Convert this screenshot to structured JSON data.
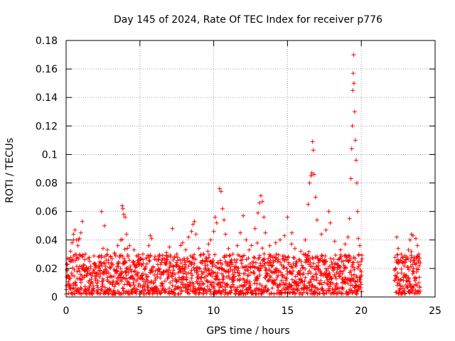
{
  "chart_data": {
    "type": "scatter",
    "title": "Day 145 of 2024, Rate Of TEC Index for receiver p776",
    "xlabel": "GPS time / hours",
    "ylabel": "ROTI / TECUs",
    "xlim": [
      0,
      25
    ],
    "ylim": [
      0,
      0.18
    ],
    "x_ticks": [
      0,
      5,
      10,
      15,
      20,
      25
    ],
    "x_tick_labels": [
      "0",
      "5",
      "10",
      "15",
      "20",
      "25"
    ],
    "y_ticks": [
      0,
      0.02,
      0.04,
      0.06,
      0.08,
      0.1,
      0.12,
      0.14,
      0.16,
      0.18
    ],
    "y_tick_labels": [
      "0",
      "0.02",
      "0.04",
      "0.06",
      "0.08",
      "0.1",
      "0.12",
      "0.14",
      "0.16",
      "0.18"
    ],
    "grid": true,
    "marker": "+",
    "color": "#ff0000",
    "data_gap_hours": [
      20.0,
      22.2
    ],
    "series": [
      {
        "name": "ROTI",
        "points": [
          [
            0.1,
            0.015
          ],
          [
            0.3,
            0.032
          ],
          [
            0.4,
            0.038
          ],
          [
            0.5,
            0.044
          ],
          [
            0.6,
            0.047
          ],
          [
            0.7,
            0.04
          ],
          [
            0.8,
            0.036
          ],
          [
            0.9,
            0.041
          ],
          [
            1.0,
            0.045
          ],
          [
            1.1,
            0.053
          ],
          [
            1.3,
            0.03
          ],
          [
            1.6,
            0.025
          ],
          [
            2.0,
            0.022
          ],
          [
            2.2,
            0.028
          ],
          [
            2.4,
            0.06
          ],
          [
            2.5,
            0.034
          ],
          [
            2.6,
            0.05
          ],
          [
            2.8,
            0.033
          ],
          [
            3.0,
            0.028
          ],
          [
            3.3,
            0.03
          ],
          [
            3.5,
            0.036
          ],
          [
            3.7,
            0.04
          ],
          [
            3.8,
            0.064
          ],
          [
            3.85,
            0.062
          ],
          [
            3.9,
            0.058
          ],
          [
            4.0,
            0.056
          ],
          [
            4.1,
            0.044
          ],
          [
            4.3,
            0.036
          ],
          [
            4.6,
            0.033
          ],
          [
            4.9,
            0.028
          ],
          [
            5.2,
            0.03
          ],
          [
            5.6,
            0.036
          ],
          [
            5.7,
            0.043
          ],
          [
            5.8,
            0.041
          ],
          [
            6.3,
            0.028
          ],
          [
            6.8,
            0.031
          ],
          [
            7.0,
            0.035
          ],
          [
            7.2,
            0.048
          ],
          [
            7.5,
            0.03
          ],
          [
            7.9,
            0.038
          ],
          [
            8.1,
            0.033
          ],
          [
            8.5,
            0.046
          ],
          [
            8.6,
            0.051
          ],
          [
            8.7,
            0.053
          ],
          [
            8.8,
            0.044
          ],
          [
            9.0,
            0.034
          ],
          [
            9.3,
            0.03
          ],
          [
            9.6,
            0.032
          ],
          [
            9.8,
            0.04
          ],
          [
            10.0,
            0.046
          ],
          [
            10.1,
            0.056
          ],
          [
            10.2,
            0.052
          ],
          [
            10.4,
            0.076
          ],
          [
            10.5,
            0.074
          ],
          [
            10.6,
            0.062
          ],
          [
            10.7,
            0.054
          ],
          [
            10.8,
            0.044
          ],
          [
            11.0,
            0.034
          ],
          [
            11.3,
            0.03
          ],
          [
            11.6,
            0.036
          ],
          [
            11.8,
            0.045
          ],
          [
            12.0,
            0.057
          ],
          [
            12.2,
            0.04
          ],
          [
            12.4,
            0.033
          ],
          [
            12.8,
            0.048
          ],
          [
            13.0,
            0.059
          ],
          [
            13.1,
            0.066
          ],
          [
            13.2,
            0.071
          ],
          [
            13.3,
            0.067
          ],
          [
            13.4,
            0.056
          ],
          [
            13.5,
            0.045
          ],
          [
            13.8,
            0.036
          ],
          [
            14.2,
            0.038
          ],
          [
            14.5,
            0.04
          ],
          [
            14.8,
            0.043
          ],
          [
            15.0,
            0.056
          ],
          [
            15.3,
            0.045
          ],
          [
            15.5,
            0.034
          ],
          [
            15.9,
            0.032
          ],
          [
            16.2,
            0.04
          ],
          [
            16.4,
            0.065
          ],
          [
            16.5,
            0.08
          ],
          [
            16.6,
            0.085
          ],
          [
            16.65,
            0.087
          ],
          [
            16.7,
            0.109
          ],
          [
            16.75,
            0.103
          ],
          [
            16.8,
            0.086
          ],
          [
            16.9,
            0.07
          ],
          [
            17.0,
            0.054
          ],
          [
            17.3,
            0.044
          ],
          [
            17.6,
            0.047
          ],
          [
            17.8,
            0.06
          ],
          [
            17.9,
            0.052
          ],
          [
            18.2,
            0.039
          ],
          [
            18.6,
            0.033
          ],
          [
            18.9,
            0.037
          ],
          [
            19.1,
            0.042
          ],
          [
            19.2,
            0.055
          ],
          [
            19.3,
            0.083
          ],
          [
            19.35,
            0.104
          ],
          [
            19.4,
            0.12
          ],
          [
            19.42,
            0.145
          ],
          [
            19.45,
            0.157
          ],
          [
            19.48,
            0.17
          ],
          [
            19.5,
            0.15
          ],
          [
            19.55,
            0.13
          ],
          [
            19.6,
            0.11
          ],
          [
            19.65,
            0.096
          ],
          [
            19.7,
            0.08
          ],
          [
            19.75,
            0.06
          ],
          [
            19.8,
            0.041
          ],
          [
            19.9,
            0.036
          ],
          [
            20.0,
            0.025
          ],
          [
            22.4,
            0.042
          ],
          [
            22.5,
            0.034
          ],
          [
            22.7,
            0.03
          ],
          [
            22.9,
            0.025
          ],
          [
            23.1,
            0.028
          ],
          [
            23.2,
            0.033
          ],
          [
            23.3,
            0.04
          ],
          [
            23.4,
            0.044
          ],
          [
            23.5,
            0.043
          ],
          [
            23.7,
            0.041
          ],
          [
            23.8,
            0.036
          ],
          [
            23.9,
            0.03
          ]
        ]
      }
    ],
    "dense_band": {
      "x_ranges": [
        [
          0.0,
          20.05
        ],
        [
          22.25,
          24.0
        ]
      ],
      "y_range": [
        0.002,
        0.03
      ],
      "sampling_interval_hours": 0.0125,
      "approx_points": 1740
    }
  }
}
